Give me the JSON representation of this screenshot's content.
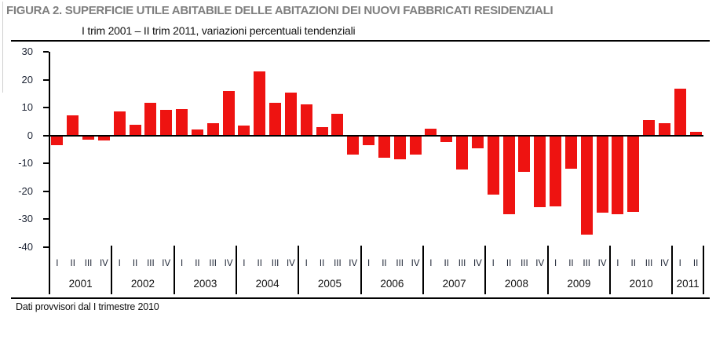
{
  "chart_data": {
    "type": "bar",
    "title": "FIGURA 2. SUPERFICIE UTILE ABITABILE DELLE ABITAZIONI DEI NUOVI FABBRICATI RESIDENZIALI",
    "subtitle": "I trim 2001 – II trim 2011, variazioni percentuali tendenziali",
    "footnote": "Dati provvisori dal I trimestre 2010",
    "ylabel": "",
    "xlabel": "",
    "ylim": [
      -40,
      30
    ],
    "yticks": [
      30,
      20,
      10,
      0,
      -10,
      -20,
      -30,
      -40
    ],
    "grid": false,
    "legend": false,
    "bar_color": "#ee1311",
    "axis_color": "#000000",
    "title_color": "#7f7f7f",
    "groups": [
      {
        "year": "2001",
        "quarters": [
          "I",
          "II",
          "III",
          "IV"
        ],
        "values": [
          -3.4,
          7.3,
          -1.4,
          -1.9
        ]
      },
      {
        "year": "2002",
        "quarters": [
          "I",
          "II",
          "III",
          "IV"
        ],
        "values": [
          8.6,
          3.9,
          11.8,
          9.2
        ]
      },
      {
        "year": "2003",
        "quarters": [
          "I",
          "II",
          "III",
          "IV"
        ],
        "values": [
          9.5,
          2.0,
          4.5,
          15.9
        ]
      },
      {
        "year": "2004",
        "quarters": [
          "I",
          "II",
          "III",
          "IV"
        ],
        "values": [
          3.6,
          23.1,
          11.7,
          15.4
        ]
      },
      {
        "year": "2005",
        "quarters": [
          "I",
          "II",
          "III",
          "IV"
        ],
        "values": [
          11.0,
          3.1,
          7.9,
          -6.9
        ]
      },
      {
        "year": "2006",
        "quarters": [
          "I",
          "II",
          "III",
          "IV"
        ],
        "values": [
          -3.5,
          -7.9,
          -8.6,
          -6.9
        ]
      },
      {
        "year": "2007",
        "quarters": [
          "I",
          "II",
          "III",
          "IV"
        ],
        "values": [
          2.3,
          -2.3,
          -12.1,
          -4.7
        ]
      },
      {
        "year": "2008",
        "quarters": [
          "I",
          "II",
          "III",
          "IV"
        ],
        "values": [
          -21.2,
          -28.3,
          -13.0,
          -25.8
        ]
      },
      {
        "year": "2009",
        "quarters": [
          "I",
          "II",
          "III",
          "IV"
        ],
        "values": [
          -25.6,
          -12.0,
          -35.5,
          -27.8
        ]
      },
      {
        "year": "2010",
        "quarters": [
          "I",
          "II",
          "III",
          "IV"
        ],
        "values": [
          -28.3,
          -27.4,
          5.6,
          4.5
        ]
      },
      {
        "year": "2011",
        "quarters": [
          "I",
          "II"
        ],
        "values": [
          16.7,
          1.4
        ]
      }
    ]
  }
}
